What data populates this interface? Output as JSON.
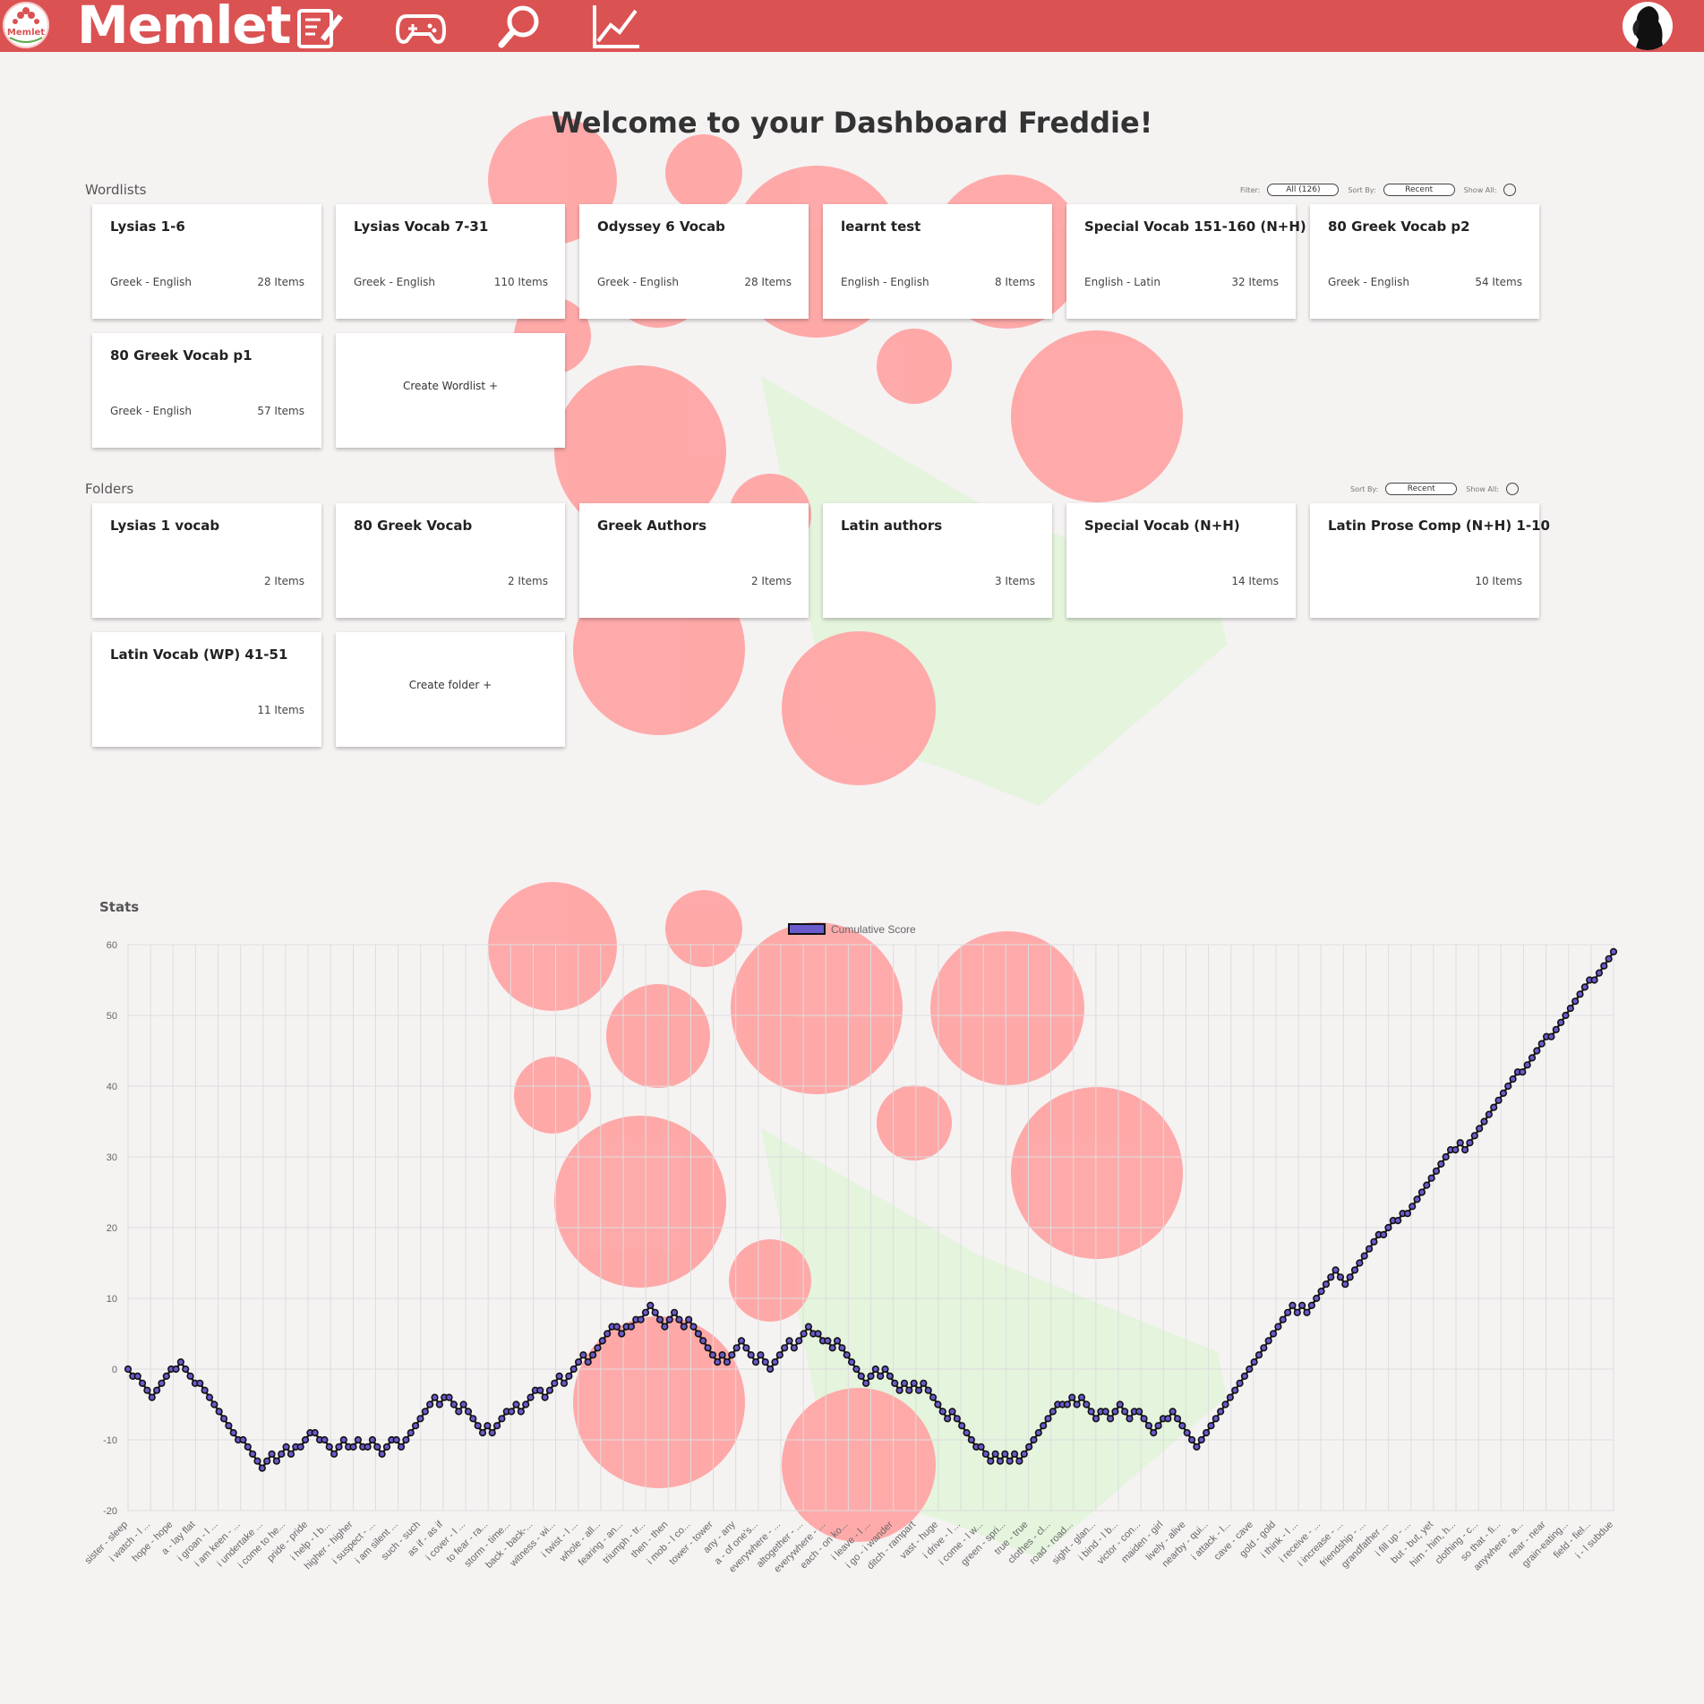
{
  "nav": {
    "logo_text": "Memlet",
    "brand": "Memlet",
    "icons": [
      "edit-icon",
      "gamepad-icon",
      "search-icon",
      "chart-icon"
    ]
  },
  "welcome": "Welcome to your Dashboard Freddie!",
  "wordlists": {
    "label": "Wordlists",
    "filter_label": "Filter:",
    "filter_value": "All (126)",
    "sort_label": "Sort By:",
    "sort_value": "Recent",
    "show_all_label": "Show All:",
    "items": [
      {
        "title": "Lysias 1-6",
        "lang": "Greek - English",
        "count": "28 Items"
      },
      {
        "title": "Lysias Vocab 7-31",
        "lang": "Greek - English",
        "count": "110 Items"
      },
      {
        "title": "Odyssey 6 Vocab",
        "lang": "Greek - English",
        "count": "28 Items"
      },
      {
        "title": "learnt test",
        "lang": "English - English",
        "count": "8 Items"
      },
      {
        "title": "Special Vocab 151-160 (N+H)",
        "lang": "English - Latin",
        "count": "32 Items"
      },
      {
        "title": "80 Greek Vocab p2",
        "lang": "Greek - English",
        "count": "54 Items"
      },
      {
        "title": "80 Greek Vocab p1",
        "lang": "Greek - English",
        "count": "57 Items"
      }
    ],
    "create_label": "Create Wordlist +"
  },
  "folders": {
    "label": "Folders",
    "sort_label": "Sort By:",
    "sort_value": "Recent",
    "show_all_label": "Show All:",
    "items": [
      {
        "title": "Lysias 1 vocab",
        "count": "2 Items"
      },
      {
        "title": "80 Greek Vocab",
        "count": "2 Items"
      },
      {
        "title": "Greek Authors",
        "count": "2 Items"
      },
      {
        "title": "Latin authors",
        "count": "3 Items"
      },
      {
        "title": "Special Vocab (N+H)",
        "count": "14 Items"
      },
      {
        "title": "Latin Prose Comp (N+H) 1-10",
        "count": "10 Items"
      },
      {
        "title": "Latin Vocab (WP) 41-51",
        "count": "11 Items"
      }
    ],
    "create_label": "Create folder +"
  },
  "stats": {
    "label": "Stats"
  },
  "chart_data": {
    "type": "line",
    "title": "",
    "legend": "top-center",
    "grid": true,
    "series": [
      {
        "name": "Cumulative Score",
        "color": "#6a5acd"
      }
    ],
    "ylim": [
      -20,
      60
    ],
    "yticks": [
      60,
      50,
      40,
      30,
      20,
      10,
      0,
      -10,
      -20
    ],
    "tick_labels": [
      "sister - sleep",
      "i watch - l ...",
      "hope - hope",
      "a - lay flat",
      "i groan - l ...",
      "i am keen - ...",
      "i undertake ...",
      "i come to he...",
      "pride - pride",
      "i help - l b...",
      "higher - higher",
      "i suspect - ...",
      "i am silent ...",
      "such - such",
      "as if - as if",
      "i cover - l ...",
      "to fear - ra...",
      "storm - time...",
      "back - back-...",
      "witness - wi...",
      "i twist - l ...",
      "whole - all...",
      "fearing - an...",
      "triumph - tr...",
      "then - then",
      "i mob - l co...",
      "tower - tower",
      "any - any",
      "a - of one's...",
      "everywhere - ...",
      "altogether - ...",
      "everywhere - ...",
      "each - on ko...",
      "i leave - l ...",
      "i go - i wander",
      "ditch - rampart",
      "vast - huge",
      "i drive - l ...",
      "i come - l w...",
      "green - spri...",
      "true - true",
      "clothes - cl...",
      "road - road...",
      "sight - glan...",
      "i bind - l b...",
      "victor - con...",
      "maiden - girl",
      "lively - alive",
      "nearby - qui...",
      "i attack - l...",
      "cave - cave",
      "gold - gold",
      "i think - l ...",
      "i receive - ...",
      "i increase - ...",
      "friendship - ...",
      "grandfather ...",
      "i fill up - ...",
      "but - but, yet",
      "him - him, h...",
      "clothing - c...",
      "so that - fi...",
      "anywhere - a...",
      "near - near",
      "grain-eating...",
      "field - fiel...",
      "i - l subdue"
    ],
    "values": [
      0,
      -1,
      -1,
      -2,
      -3,
      -4,
      -3,
      -2,
      -1,
      0,
      0,
      1,
      0,
      -1,
      -2,
      -2,
      -3,
      -4,
      -5,
      -6,
      -7,
      -8,
      -9,
      -10,
      -10,
      -11,
      -12,
      -13,
      -14,
      -13,
      -12,
      -13,
      -12,
      -11,
      -12,
      -11,
      -11,
      -10,
      -9,
      -9,
      -10,
      -10,
      -11,
      -12,
      -11,
      -10,
      -11,
      -11,
      -10,
      -11,
      -11,
      -10,
      -11,
      -12,
      -11,
      -10,
      -10,
      -11,
      -10,
      -9,
      -8,
      -7,
      -6,
      -5,
      -4,
      -5,
      -4,
      -4,
      -5,
      -6,
      -5,
      -6,
      -7,
      -8,
      -9,
      -8,
      -9,
      -8,
      -7,
      -6,
      -6,
      -5,
      -6,
      -5,
      -4,
      -3,
      -3,
      -4,
      -3,
      -2,
      -1,
      -2,
      -1,
      0,
      1,
      2,
      1,
      2,
      3,
      4,
      5,
      6,
      6,
      5,
      6,
      6,
      7,
      7,
      8,
      9,
      8,
      7,
      6,
      7,
      8,
      7,
      6,
      7,
      6,
      5,
      4,
      3,
      2,
      1,
      2,
      1,
      2,
      3,
      4,
      3,
      2,
      1,
      2,
      1,
      0,
      1,
      2,
      3,
      4,
      3,
      4,
      5,
      6,
      5,
      5,
      4,
      4,
      3,
      4,
      3,
      2,
      1,
      0,
      -1,
      -2,
      -1,
      0,
      -1,
      0,
      -1,
      -2,
      -3,
      -2,
      -3,
      -2,
      -3,
      -2,
      -3,
      -4,
      -5,
      -6,
      -7,
      -6,
      -7,
      -8,
      -9,
      -10,
      -11,
      -11,
      -12,
      -13,
      -12,
      -13,
      -12,
      -13,
      -12,
      -13,
      -12,
      -11,
      -10,
      -9,
      -8,
      -7,
      -6,
      -5,
      -5,
      -5,
      -4,
      -5,
      -4,
      -5,
      -6,
      -7,
      -6,
      -6,
      -7,
      -6,
      -5,
      -6,
      -7,
      -6,
      -6,
      -7,
      -8,
      -9,
      -8,
      -7,
      -7,
      -6,
      -7,
      -8,
      -9,
      -10,
      -11,
      -10,
      -9,
      -8,
      -7,
      -6,
      -5,
      -4,
      -3,
      -2,
      -1,
      0,
      1,
      2,
      3,
      4,
      5,
      6,
      7,
      8,
      9,
      8,
      9,
      8,
      9,
      10,
      11,
      12,
      13,
      14,
      13,
      12,
      13,
      14,
      15,
      16,
      17,
      18,
      19,
      19,
      20,
      21,
      21,
      22,
      22,
      23,
      24,
      25,
      26,
      27,
      28,
      29,
      30,
      31,
      31,
      32,
      31,
      32,
      33,
      34,
      35,
      36,
      37,
      38,
      39,
      40,
      41,
      42,
      42,
      43,
      44,
      45,
      46,
      47,
      47,
      48,
      49,
      50,
      51,
      52,
      53,
      54,
      55,
      55,
      56,
      57,
      58,
      59
    ]
  }
}
